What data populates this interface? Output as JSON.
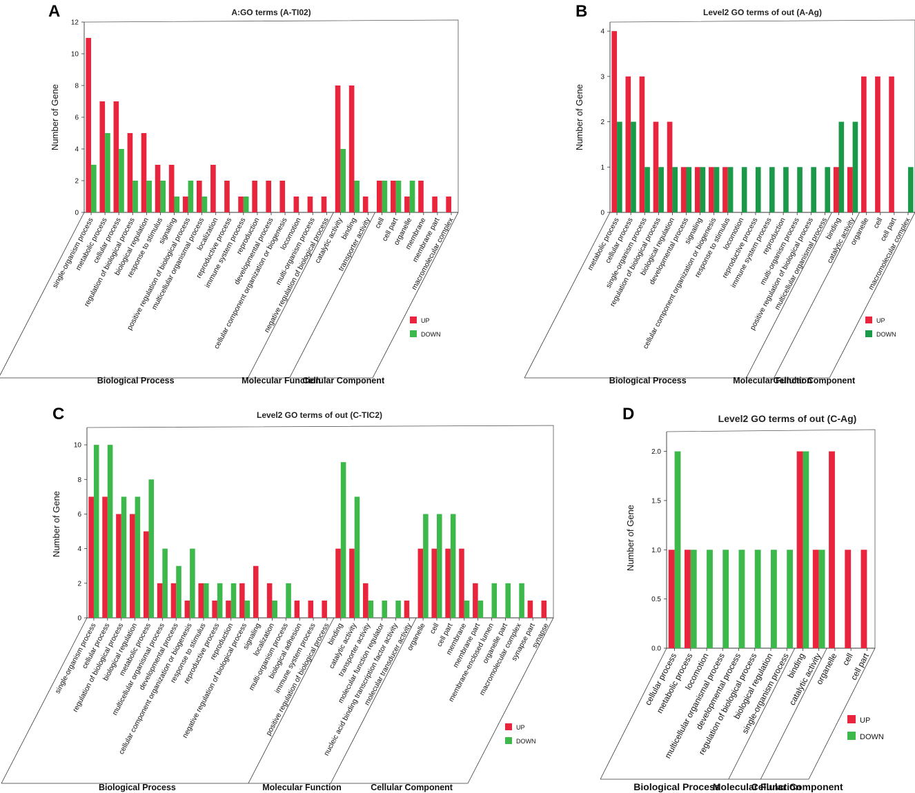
{
  "colors": {
    "up": "#e8253c",
    "down": "#3cb94a",
    "down_dark": "#1a9a48"
  },
  "legend": {
    "up": "UP",
    "down": "DOWN"
  },
  "y_axis_label": "Number of Gene",
  "chart_data": [
    {
      "id": "A",
      "letter": "A",
      "type": "bar",
      "title": "A:GO terms (A-TI02)",
      "ylabel": "Number of Gene",
      "ylim": [
        0,
        12
      ],
      "yticks": [
        "0",
        "2",
        "4",
        "6",
        "8",
        "10",
        "12"
      ],
      "categories": [
        "single-organism process",
        "metabolic process",
        "cellular process",
        "regulation of biological process",
        "biological regulation",
        "response to stimulus",
        "signaling",
        "positive regulation of biological process",
        "multicellular organismal process",
        "localization",
        "reproductive process",
        "immune system process",
        "reproduction",
        "developmental process",
        "cellular component organization or biogenesis",
        "locomotion",
        "multi-organism process",
        "negative regulation of biological process",
        "catalytic activity",
        "binding",
        "transporter activity",
        "cell",
        "cell part",
        "organelle",
        "membrane",
        "membrane part",
        "macromolecular complex"
      ],
      "series": [
        {
          "name": "UP",
          "values": [
            11,
            7,
            7,
            5,
            5,
            3,
            3,
            1,
            2,
            3,
            2,
            1,
            2,
            2,
            2,
            1,
            1,
            1,
            8,
            8,
            1,
            2,
            2,
            1,
            2,
            1,
            1
          ]
        },
        {
          "name": "DOWN",
          "values": [
            3,
            5,
            4,
            2,
            2,
            2,
            1,
            2,
            1,
            0,
            0,
            1,
            0,
            0,
            0,
            0,
            0,
            0,
            4,
            2,
            0,
            2,
            2,
            2,
            0,
            0,
            0
          ]
        }
      ],
      "groups": [
        {
          "name": "Biological Process",
          "start": 0,
          "end": 17
        },
        {
          "name": "Molecular Function",
          "start": 18,
          "end": 20
        },
        {
          "name": "Cellular Component",
          "start": 21,
          "end": 26
        }
      ]
    },
    {
      "id": "B",
      "letter": "B",
      "type": "bar",
      "title": "Level2 GO terms of out (A-Ag)",
      "ylabel": "Number of Gene",
      "ylim": [
        0,
        4.2
      ],
      "yticks": [
        "0",
        "1",
        "2",
        "3",
        "4"
      ],
      "categories": [
        "metabolic process",
        "cellular process",
        "single-organism process",
        "regulation of biological process",
        "biological regulation",
        "developmental process",
        "signaling",
        "cellular component organization or biogenesis",
        "response to stimulus",
        "locomotion",
        "reproductive process",
        "immune system process",
        "reproduction",
        "multi-organism process",
        "positive regulation of biological process",
        "multicellular organismal process",
        "binding",
        "catalytic activity",
        "organelle",
        "cell",
        "cell part",
        "macromolecular complex"
      ],
      "series": [
        {
          "name": "UP",
          "values": [
            4,
            3,
            3,
            2,
            2,
            1,
            1,
            1,
            1,
            0,
            0,
            0,
            0,
            0,
            0,
            0,
            1,
            1,
            3,
            3,
            3,
            0
          ]
        },
        {
          "name": "DOWN",
          "values": [
            2,
            2,
            1,
            1,
            1,
            1,
            1,
            1,
            1,
            1,
            1,
            1,
            1,
            1,
            1,
            1,
            2,
            2,
            0,
            0,
            0,
            1
          ]
        }
      ],
      "groups": [
        {
          "name": "Biological Process",
          "start": 0,
          "end": 15
        },
        {
          "name": "Molecular Function",
          "start": 16,
          "end": 17
        },
        {
          "name": "Cellular Component",
          "start": 18,
          "end": 21
        }
      ]
    },
    {
      "id": "C",
      "letter": "C",
      "type": "bar",
      "title": "Level2 GO terms of out (C-TIC2)",
      "ylabel": "Number of Gene",
      "ylim": [
        0,
        11
      ],
      "yticks": [
        "0",
        "2",
        "4",
        "6",
        "8",
        "10"
      ],
      "categories": [
        "single-organism process",
        "cellular process",
        "regulation of biological process",
        "biological regulation",
        "metabolic process",
        "multicellular organismal process",
        "developmental process",
        "cellular component organization or biogenesis",
        "response to stimulus",
        "reproductive process",
        "reproduction",
        "negative regulation of biological process",
        "signaling",
        "localization",
        "multi-organism process",
        "biological adhesion",
        "immune system process",
        "positive regulation of biological process",
        "binding",
        "catalytic activity",
        "transporter activity",
        "molecular function regulator",
        "nucleic acid binding transcription factor activity",
        "molecular transducer activity",
        "organelle",
        "cell",
        "cell part",
        "membrane",
        "membrane part",
        "membrane-enclosed lumen",
        "organelle part",
        "macromolecular complex",
        "synapse part",
        "synapse"
      ],
      "series": [
        {
          "name": "UP",
          "values": [
            7,
            7,
            6,
            6,
            5,
            2,
            2,
            1,
            2,
            1,
            1,
            2,
            3,
            2,
            0,
            1,
            1,
            1,
            4,
            4,
            2,
            0,
            0,
            1,
            4,
            4,
            4,
            4,
            2,
            0,
            0,
            0,
            1,
            1
          ]
        },
        {
          "name": "DOWN",
          "values": [
            10,
            10,
            7,
            7,
            8,
            4,
            3,
            4,
            2,
            2,
            2,
            1,
            0,
            1,
            2,
            0,
            0,
            0,
            9,
            7,
            1,
            1,
            1,
            0,
            6,
            6,
            6,
            1,
            1,
            2,
            2,
            2,
            0,
            0
          ]
        }
      ],
      "groups": [
        {
          "name": "Biological Process",
          "start": 0,
          "end": 17
        },
        {
          "name": "Molecular Function",
          "start": 18,
          "end": 23
        },
        {
          "name": "Cellular Component",
          "start": 24,
          "end": 33
        }
      ]
    },
    {
      "id": "D",
      "letter": "D",
      "type": "bar",
      "title": "Level2 GO terms of out (C-Ag)",
      "ylabel": "Number of Gene",
      "ylim": [
        0,
        2.2
      ],
      "yticks": [
        "0.0",
        "0.5",
        "1.0",
        "1.5",
        "2.0"
      ],
      "categories": [
        "cellular process",
        "metabolic process",
        "locomotion",
        "multicellular organismal process",
        "developmental process",
        "regulation of biological process",
        "biological regulation",
        "single-organism process",
        "binding",
        "catalytic activity",
        "organelle",
        "cell",
        "cell part"
      ],
      "series": [
        {
          "name": "UP",
          "values": [
            1,
            1,
            0,
            0,
            0,
            0,
            0,
            0,
            2,
            1,
            2,
            1,
            1
          ]
        },
        {
          "name": "DOWN",
          "values": [
            2,
            1,
            1,
            1,
            1,
            1,
            1,
            1,
            2,
            1,
            0,
            0,
            0
          ]
        }
      ],
      "groups": [
        {
          "name": "Biological Process",
          "start": 0,
          "end": 7
        },
        {
          "name": "Molecular Function",
          "start": 8,
          "end": 9
        },
        {
          "name": "Cellular Component",
          "start": 10,
          "end": 12
        }
      ]
    }
  ]
}
